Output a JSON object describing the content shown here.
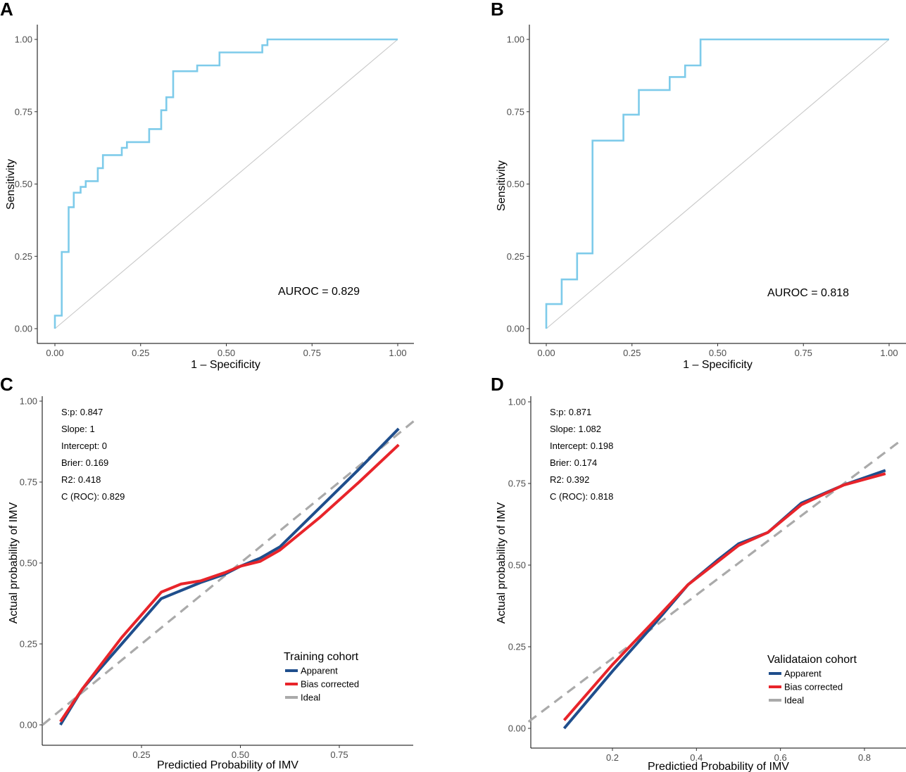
{
  "chart_data": [
    {
      "panel": "A",
      "type": "line",
      "xlabel": "1 – Specificity",
      "ylabel": "Sensitivity",
      "xlim": [
        0,
        1
      ],
      "ylim": [
        0,
        1
      ],
      "xticks": [
        "0.00",
        "0.25",
        "0.50",
        "0.75",
        "1.00"
      ],
      "yticks": [
        "0.00",
        "0.25",
        "0.50",
        "0.75",
        "1.00"
      ],
      "annotation": "AUROC = 0.829",
      "color": "#7ecbea",
      "diagonal_color": "#c8c8c8",
      "series": [
        {
          "name": "ROC",
          "x": [
            0,
            0,
            0.02,
            0.02,
            0.04,
            0.04,
            0.055,
            0.055,
            0.075,
            0.075,
            0.09,
            0.09,
            0.125,
            0.125,
            0.14,
            0.14,
            0.195,
            0.195,
            0.21,
            0.21,
            0.275,
            0.275,
            0.31,
            0.31,
            0.325,
            0.325,
            0.345,
            0.345,
            0.415,
            0.415,
            0.48,
            0.48,
            0.605,
            0.605,
            0.62,
            0.62,
            1.0
          ],
          "y": [
            0,
            0.045,
            0.045,
            0.265,
            0.265,
            0.42,
            0.42,
            0.47,
            0.47,
            0.49,
            0.49,
            0.51,
            0.51,
            0.555,
            0.555,
            0.6,
            0.6,
            0.625,
            0.625,
            0.645,
            0.645,
            0.69,
            0.69,
            0.755,
            0.755,
            0.8,
            0.8,
            0.89,
            0.89,
            0.91,
            0.91,
            0.955,
            0.955,
            0.98,
            0.98,
            1.0,
            1.0
          ]
        }
      ]
    },
    {
      "panel": "B",
      "type": "line",
      "xlabel": "1 – Specificity",
      "ylabel": "Sensitivity",
      "xlim": [
        0,
        1
      ],
      "ylim": [
        0,
        1
      ],
      "xticks": [
        "0.00",
        "0.25",
        "0.50",
        "0.75",
        "1.00"
      ],
      "yticks": [
        "0.00",
        "0.25",
        "0.50",
        "0.75",
        "1.00"
      ],
      "annotation": "AUROC = 0.818",
      "color": "#7ecbea",
      "diagonal_color": "#c8c8c8",
      "series": [
        {
          "name": "ROC",
          "x": [
            0,
            0,
            0.045,
            0.045,
            0.09,
            0.09,
            0.135,
            0.135,
            0.225,
            0.225,
            0.27,
            0.27,
            0.36,
            0.36,
            0.405,
            0.405,
            0.45,
            0.45,
            1.0
          ],
          "y": [
            0,
            0.085,
            0.085,
            0.17,
            0.17,
            0.26,
            0.26,
            0.65,
            0.65,
            0.74,
            0.74,
            0.825,
            0.825,
            0.87,
            0.87,
            0.91,
            0.91,
            1.0,
            1.0
          ]
        }
      ]
    },
    {
      "panel": "C",
      "type": "line",
      "xlabel": "Predictied Probability of IMV",
      "ylabel": "Actual probability of IMV",
      "xlim": [
        0,
        0.94
      ],
      "ylim": [
        0,
        1
      ],
      "xticks": [
        0.25,
        0.5,
        0.75
      ],
      "xtick_labels": [
        "0.25",
        "0.50",
        "0.75"
      ],
      "yticks": [
        "0.00",
        "0.25",
        "0.50",
        "0.75",
        "1.00"
      ],
      "stats": [
        "S:p: 0.847",
        "Slope: 1",
        "Intercept: 0",
        "Brier: 0.169",
        "R2: 0.418",
        "C (ROC): 0.829"
      ],
      "legend_title": "Training cohort",
      "legend": [
        {
          "label": "Apparent",
          "color": "#1f4e8c"
        },
        {
          "label": "Bias corrected",
          "color": "#e8242a"
        },
        {
          "label": "Ideal",
          "color": "#aaaaaa"
        }
      ],
      "series": [
        {
          "name": "Apparent",
          "color": "#1f4e8c",
          "x": [
            0.045,
            0.1,
            0.2,
            0.3,
            0.4,
            0.46,
            0.5,
            0.55,
            0.6,
            0.7,
            0.8,
            0.9
          ],
          "y": [
            0.0,
            0.11,
            0.25,
            0.39,
            0.44,
            0.465,
            0.49,
            0.515,
            0.55,
            0.67,
            0.79,
            0.915
          ]
        },
        {
          "name": "Bias corrected",
          "color": "#e8242a",
          "x": [
            0.045,
            0.1,
            0.2,
            0.3,
            0.35,
            0.4,
            0.46,
            0.5,
            0.55,
            0.6,
            0.7,
            0.8,
            0.9
          ],
          "y": [
            0.01,
            0.11,
            0.27,
            0.41,
            0.435,
            0.445,
            0.47,
            0.49,
            0.505,
            0.54,
            0.64,
            0.75,
            0.865
          ]
        },
        {
          "name": "Ideal",
          "color": "#aaaaaa",
          "dashed": true,
          "x": [
            0,
            0.94
          ],
          "y": [
            0,
            0.94
          ]
        }
      ]
    },
    {
      "panel": "D",
      "type": "line",
      "xlabel": "Predictied Probability of IMV",
      "ylabel": "Actual probability of IMV",
      "xlim": [
        0,
        0.88
      ],
      "ylim": [
        0,
        1
      ],
      "xticks": [
        0.2,
        0.4,
        0.6,
        0.8
      ],
      "xtick_labels": [
        "0.2",
        "0.4",
        "0.6",
        "0.8"
      ],
      "yticks": [
        "0.00",
        "0.25",
        "0.50",
        "0.75",
        "1.00"
      ],
      "stats": [
        "S:p: 0.871",
        "Slope: 1.082",
        "Intercept: 0.198",
        "Brier: 0.174",
        "R2: 0.392",
        "C (ROC): 0.818"
      ],
      "legend_title": "Validataion cohort",
      "legend": [
        {
          "label": "Apparent",
          "color": "#1f4e8c"
        },
        {
          "label": "Bias corrected",
          "color": "#e8242a"
        },
        {
          "label": "Ideal",
          "color": "#aaaaaa"
        }
      ],
      "series": [
        {
          "name": "Apparent",
          "color": "#1f4e8c",
          "x": [
            0.085,
            0.2,
            0.3,
            0.38,
            0.45,
            0.5,
            0.57,
            0.65,
            0.75,
            0.85
          ],
          "y": [
            0.0,
            0.175,
            0.32,
            0.44,
            0.515,
            0.565,
            0.6,
            0.69,
            0.745,
            0.79
          ]
        },
        {
          "name": "Bias corrected",
          "color": "#e8242a",
          "x": [
            0.085,
            0.2,
            0.3,
            0.38,
            0.45,
            0.5,
            0.57,
            0.65,
            0.75,
            0.85
          ],
          "y": [
            0.025,
            0.195,
            0.33,
            0.44,
            0.51,
            0.56,
            0.6,
            0.685,
            0.745,
            0.78
          ]
        },
        {
          "name": "Ideal",
          "color": "#aaaaaa",
          "dashed": true,
          "x": [
            0,
            0.88
          ],
          "y": [
            0.02,
            0.875
          ]
        }
      ]
    }
  ],
  "panel_labels": [
    "A",
    "B",
    "C",
    "D"
  ]
}
